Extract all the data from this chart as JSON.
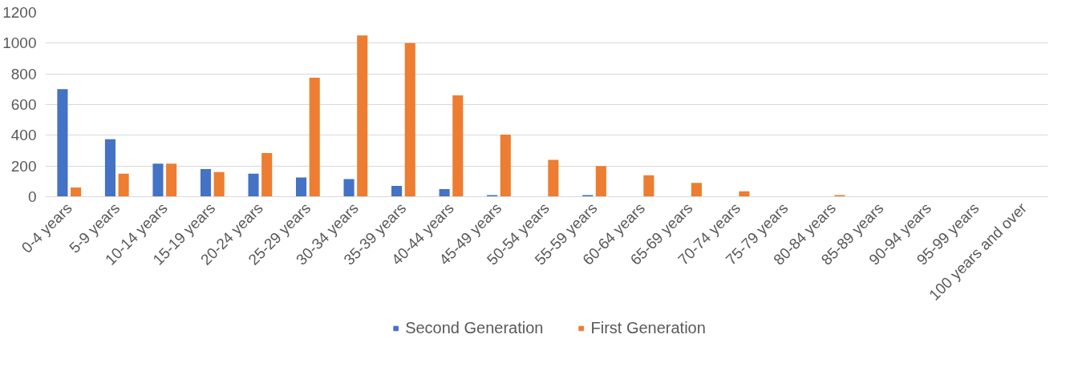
{
  "chart_data": {
    "type": "bar",
    "categories": [
      "0-4 years",
      "5-9 years",
      "10-14 years",
      "15-19 years",
      "20-24 years",
      "25-29 years",
      "30-34 years",
      "35-39 years",
      "40-44 years",
      "45-49 years",
      "50-54 years",
      "55-59 years",
      "60-64 years",
      "65-69 years",
      "70-74 years",
      "75-79 years",
      "80-84 years",
      "85-89 years",
      "90-94 years",
      "95-99 years",
      "100 years and over"
    ],
    "series": [
      {
        "name": "Second Generation",
        "color": "#4472c4",
        "values": [
          700,
          375,
          215,
          180,
          150,
          125,
          115,
          70,
          50,
          10,
          0,
          10,
          0,
          0,
          0,
          0,
          0,
          0,
          0,
          0,
          0
        ]
      },
      {
        "name": "First Generation",
        "color": "#ed7d31",
        "values": [
          60,
          150,
          215,
          160,
          285,
          775,
          1050,
          1000,
          660,
          405,
          240,
          200,
          140,
          90,
          35,
          0,
          10,
          0,
          0,
          0,
          0
        ]
      }
    ],
    "ylim": [
      0,
      1200
    ],
    "yticks": [
      0,
      200,
      400,
      600,
      800,
      1000,
      1200
    ],
    "grid": "y",
    "legend": "bottom"
  }
}
